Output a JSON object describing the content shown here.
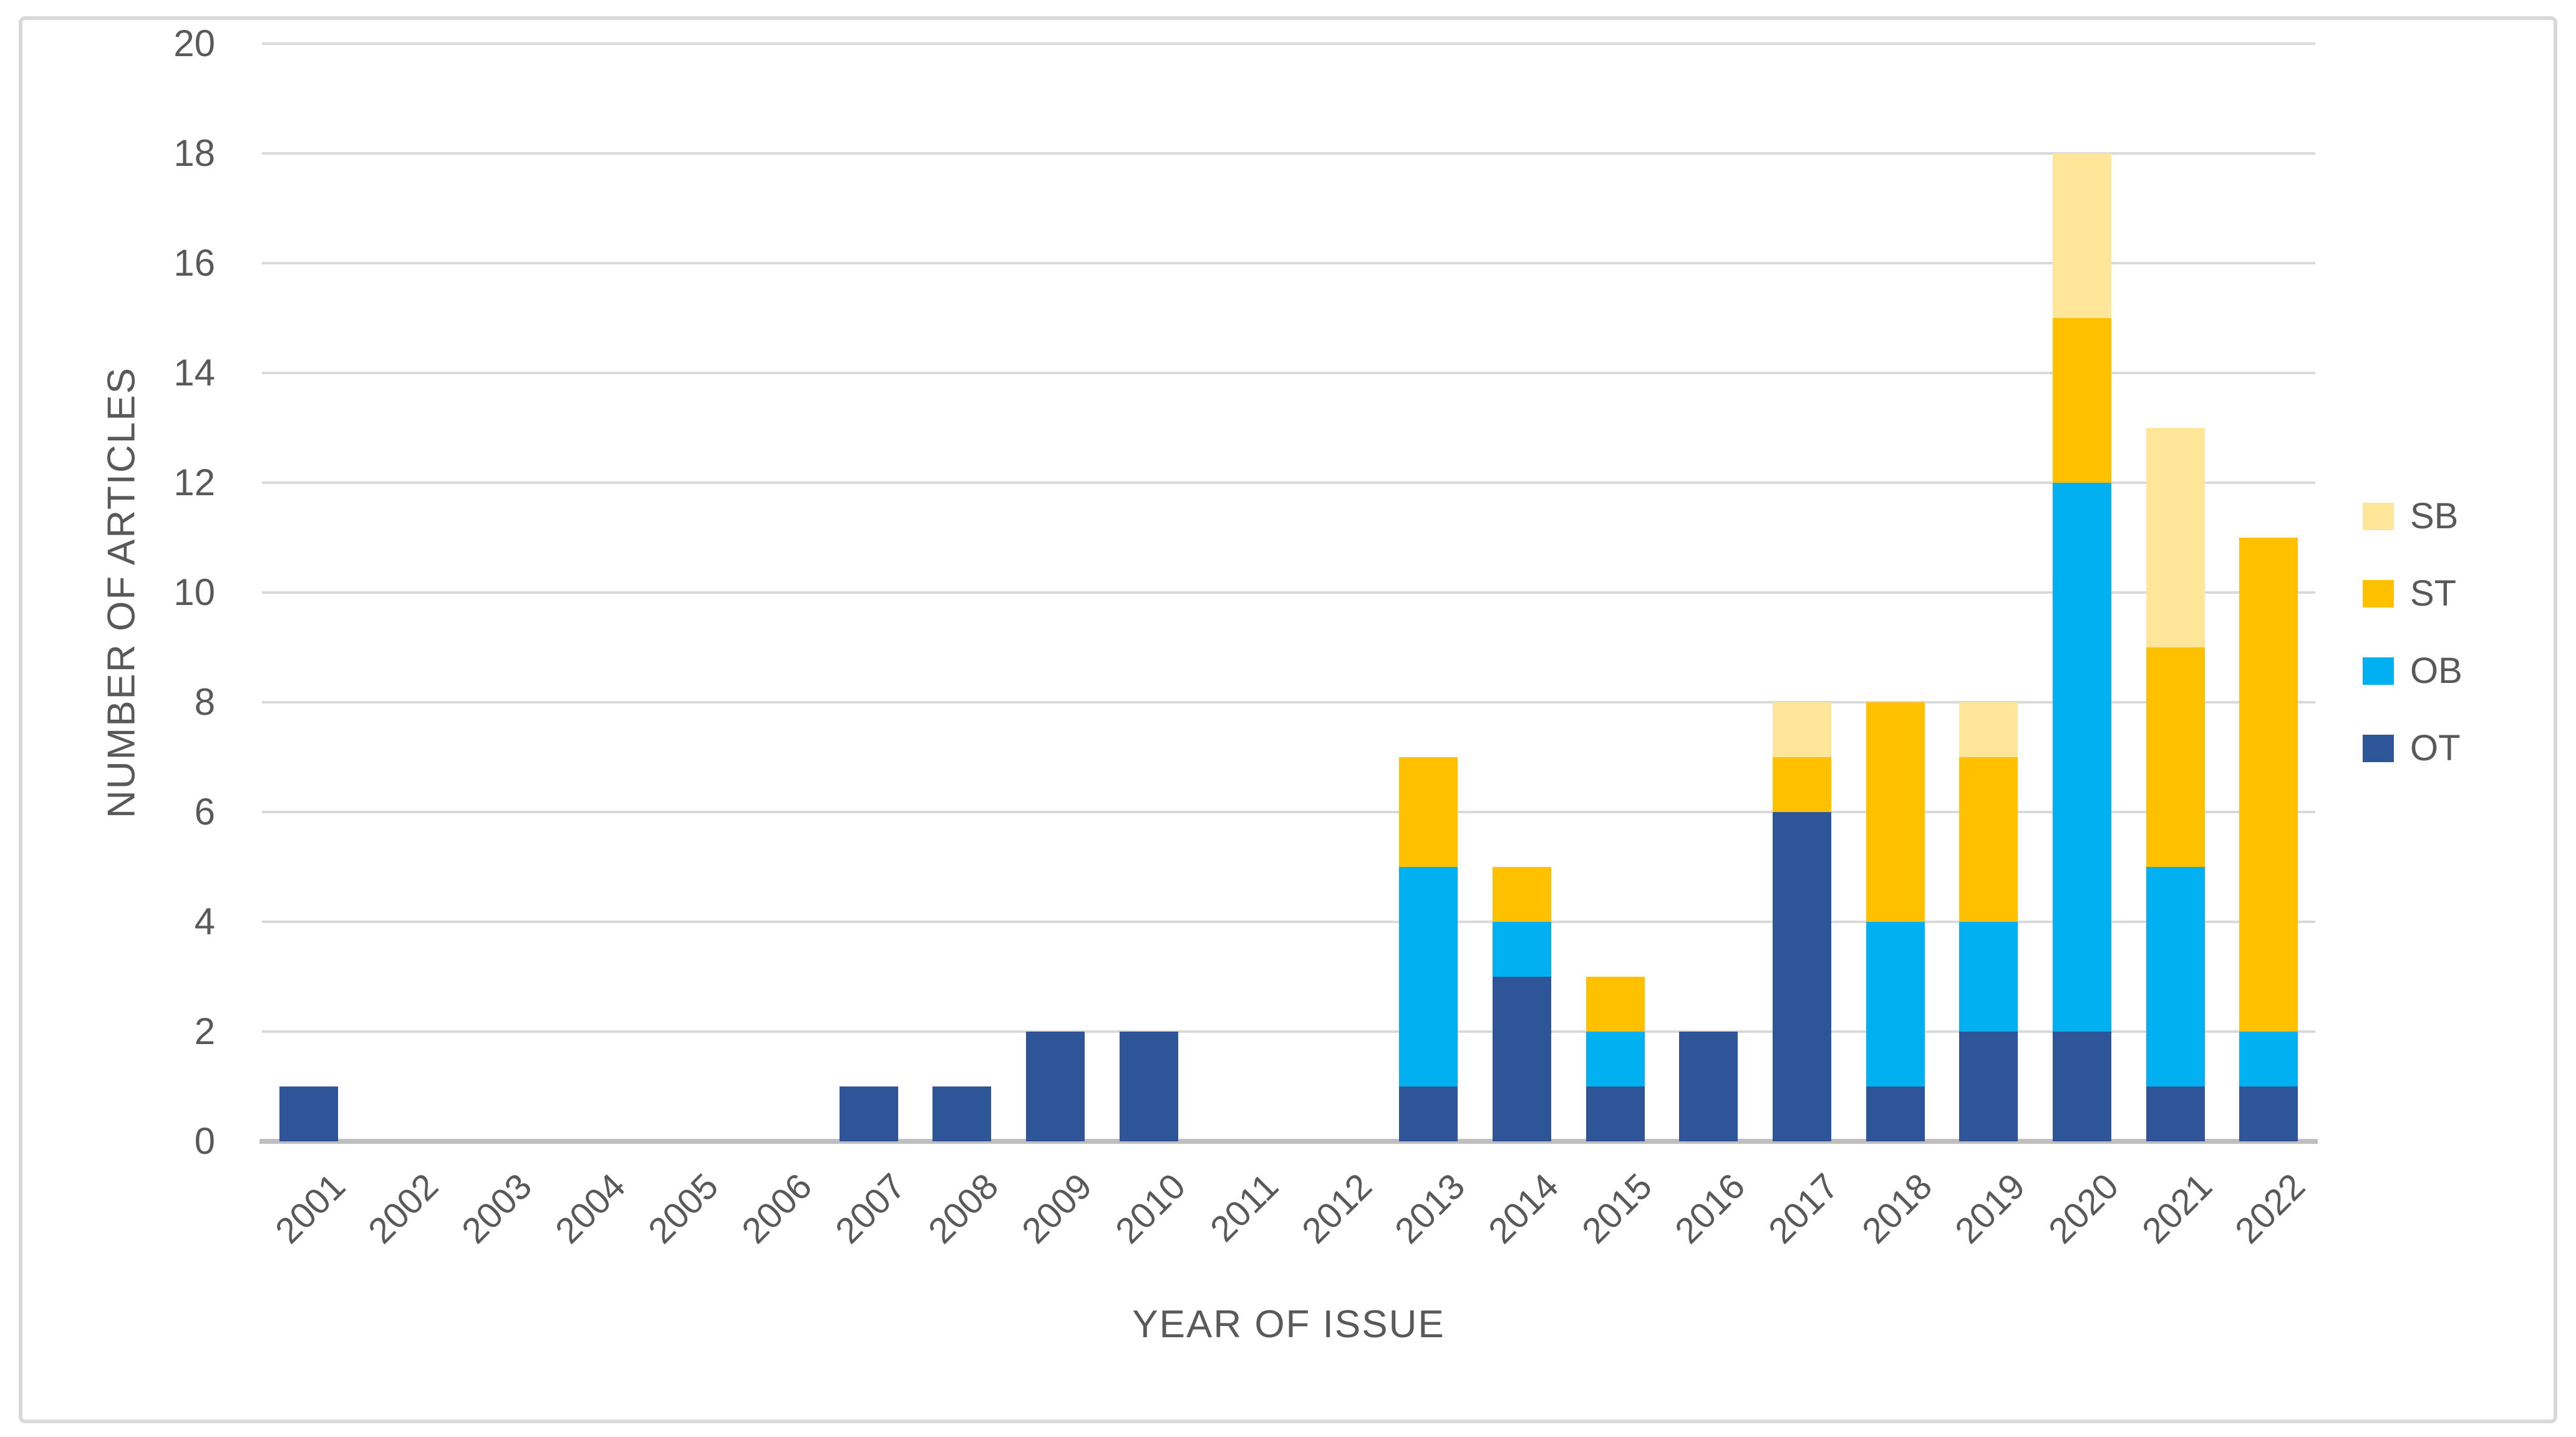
{
  "chart_data": {
    "type": "bar",
    "stacked": true,
    "title": "",
    "xlabel": "YEAR OF ISSUE",
    "ylabel": "NUMBER OF ARTICLES",
    "categories": [
      2001,
      2002,
      2003,
      2004,
      2005,
      2006,
      2007,
      2008,
      2009,
      2010,
      2011,
      2012,
      2013,
      2014,
      2015,
      2016,
      2017,
      2018,
      2019,
      2020,
      2021,
      2022
    ],
    "series": [
      {
        "name": "OT",
        "color": "#2E5597",
        "values": [
          1,
          0,
          0,
          0,
          0,
          0,
          1,
          1,
          2,
          2,
          0,
          0,
          1,
          3,
          1,
          2,
          6,
          1,
          2,
          2,
          1,
          1
        ]
      },
      {
        "name": "OB",
        "color": "#00B0F0",
        "values": [
          0,
          0,
          0,
          0,
          0,
          0,
          0,
          0,
          0,
          0,
          0,
          0,
          4,
          1,
          1,
          0,
          0,
          3,
          2,
          10,
          4,
          1
        ]
      },
      {
        "name": "ST",
        "color": "#FFC000",
        "values": [
          0,
          0,
          0,
          0,
          0,
          0,
          0,
          0,
          0,
          0,
          0,
          0,
          2,
          1,
          1,
          0,
          1,
          4,
          3,
          3,
          4,
          9
        ]
      },
      {
        "name": "SB",
        "color": "#FFE699",
        "values": [
          0,
          0,
          0,
          0,
          0,
          0,
          0,
          0,
          0,
          0,
          0,
          0,
          0,
          0,
          0,
          0,
          1,
          0,
          1,
          3,
          4,
          0
        ]
      }
    ],
    "totals": [
      1,
      0,
      0,
      0,
      0,
      0,
      1,
      1,
      2,
      2,
      0,
      0,
      7,
      5,
      3,
      2,
      8,
      8,
      8,
      18,
      13,
      11
    ],
    "ylim": [
      0,
      20
    ],
    "ytick_step": 2,
    "grid": true,
    "legend_position": "right",
    "legend_order": [
      "SB",
      "ST",
      "OB",
      "OT"
    ]
  },
  "colors": {
    "gridline": "#D9D9D9",
    "x_axis_line": "#BFBFBF",
    "frame_border": "#D9D9D9",
    "text": "#595959",
    "background": "#FFFFFF"
  }
}
